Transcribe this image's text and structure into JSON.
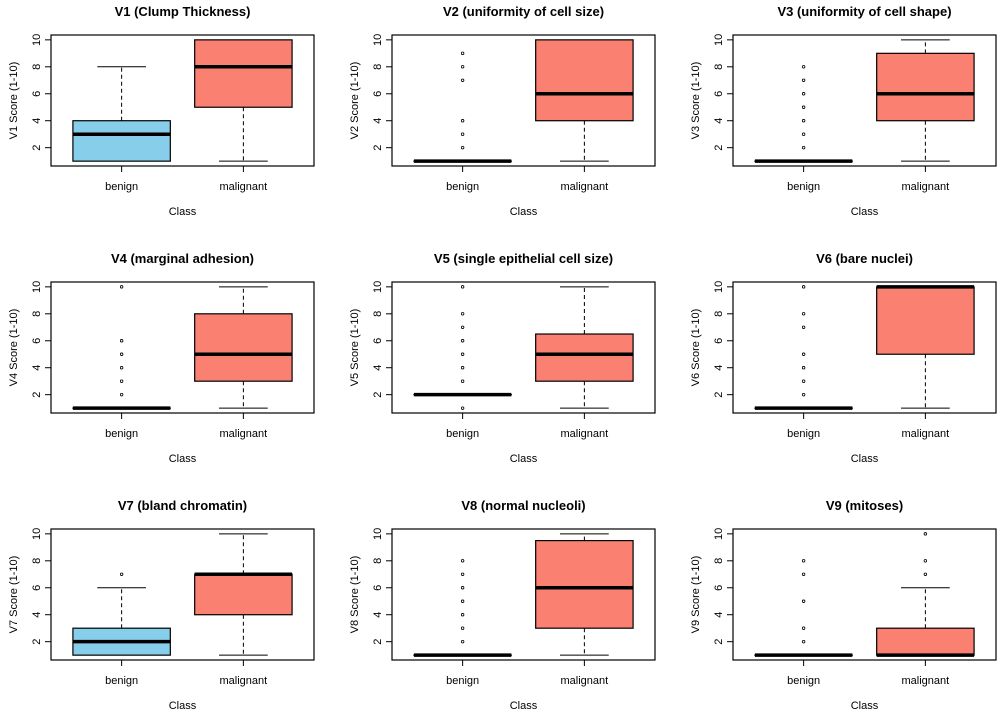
{
  "colors": {
    "benign": "#87CEEB",
    "malignant": "#FA8072"
  },
  "chart_data": [
    {
      "type": "box",
      "title": "V1 (Clump Thickness)",
      "xlabel": "Class",
      "ylabel": "V1 Score (1-10)",
      "ylim": [
        1,
        10
      ],
      "yticks": [
        2,
        4,
        6,
        8,
        10
      ],
      "categories": [
        "benign",
        "malignant"
      ],
      "boxes": [
        {
          "category": "benign",
          "whisker_low": 1,
          "q1": 1,
          "median": 3,
          "q3": 4,
          "whisker_high": 8,
          "outliers": []
        },
        {
          "category": "malignant",
          "whisker_low": 1,
          "q1": 5,
          "median": 8,
          "q3": 10,
          "whisker_high": 10,
          "outliers": []
        }
      ]
    },
    {
      "type": "box",
      "title": "V2 (uniformity of cell size)",
      "xlabel": "Class",
      "ylabel": "V2 Score (1-10)",
      "ylim": [
        1,
        10
      ],
      "yticks": [
        2,
        4,
        6,
        8,
        10
      ],
      "categories": [
        "benign",
        "malignant"
      ],
      "boxes": [
        {
          "category": "benign",
          "whisker_low": 1,
          "q1": 1,
          "median": 1,
          "q3": 1,
          "whisker_high": 1,
          "outliers": [
            2,
            3,
            4,
            7,
            8,
            9
          ]
        },
        {
          "category": "malignant",
          "whisker_low": 1,
          "q1": 4,
          "median": 6,
          "q3": 10,
          "whisker_high": 10,
          "outliers": []
        }
      ]
    },
    {
      "type": "box",
      "title": "V3 (uniformity of cell shape)",
      "xlabel": "Class",
      "ylabel": "V3 Score (1-10)",
      "ylim": [
        1,
        10
      ],
      "yticks": [
        2,
        4,
        6,
        8,
        10
      ],
      "categories": [
        "benign",
        "malignant"
      ],
      "boxes": [
        {
          "category": "benign",
          "whisker_low": 1,
          "q1": 1,
          "median": 1,
          "q3": 1,
          "whisker_high": 1,
          "outliers": [
            2,
            3,
            4,
            5,
            6,
            7,
            8
          ]
        },
        {
          "category": "malignant",
          "whisker_low": 1,
          "q1": 4,
          "median": 6,
          "q3": 9,
          "whisker_high": 10,
          "outliers": []
        }
      ]
    },
    {
      "type": "box",
      "title": "V4 (marginal adhesion)",
      "xlabel": "Class",
      "ylabel": "V4 Score (1-10)",
      "ylim": [
        1,
        10
      ],
      "yticks": [
        2,
        4,
        6,
        8,
        10
      ],
      "categories": [
        "benign",
        "malignant"
      ],
      "boxes": [
        {
          "category": "benign",
          "whisker_low": 1,
          "q1": 1,
          "median": 1,
          "q3": 1,
          "whisker_high": 1,
          "outliers": [
            2,
            3,
            4,
            5,
            6,
            10
          ]
        },
        {
          "category": "malignant",
          "whisker_low": 1,
          "q1": 3,
          "median": 5,
          "q3": 8,
          "whisker_high": 10,
          "outliers": []
        }
      ]
    },
    {
      "type": "box",
      "title": "V5 (single epithelial cell size)",
      "xlabel": "Class",
      "ylabel": "V5 Score (1-10)",
      "ylim": [
        1,
        10
      ],
      "yticks": [
        2,
        4,
        6,
        8,
        10
      ],
      "categories": [
        "benign",
        "malignant"
      ],
      "boxes": [
        {
          "category": "benign",
          "whisker_low": 2,
          "q1": 2,
          "median": 2,
          "q3": 2,
          "whisker_high": 2,
          "outliers": [
            1,
            3,
            4,
            5,
            6,
            7,
            8,
            10
          ]
        },
        {
          "category": "malignant",
          "whisker_low": 1,
          "q1": 3,
          "median": 5,
          "q3": 6.5,
          "whisker_high": 10,
          "outliers": []
        }
      ]
    },
    {
      "type": "box",
      "title": "V6 (bare nuclei)",
      "xlabel": "Class",
      "ylabel": "V6 Score (1-10)",
      "ylim": [
        1,
        10
      ],
      "yticks": [
        2,
        4,
        6,
        8,
        10
      ],
      "categories": [
        "benign",
        "malignant"
      ],
      "boxes": [
        {
          "category": "benign",
          "whisker_low": 1,
          "q1": 1,
          "median": 1,
          "q3": 1,
          "whisker_high": 1,
          "outliers": [
            2,
            3,
            4,
            5,
            7,
            8,
            10
          ]
        },
        {
          "category": "malignant",
          "whisker_low": 1,
          "q1": 5,
          "median": 10,
          "q3": 10,
          "whisker_high": 10,
          "outliers": []
        }
      ]
    },
    {
      "type": "box",
      "title": "V7 (bland chromatin)",
      "xlabel": "Class",
      "ylabel": "V7 Score (1-10)",
      "ylim": [
        1,
        10
      ],
      "yticks": [
        2,
        4,
        6,
        8,
        10
      ],
      "categories": [
        "benign",
        "malignant"
      ],
      "boxes": [
        {
          "category": "benign",
          "whisker_low": 1,
          "q1": 1,
          "median": 2,
          "q3": 3,
          "whisker_high": 6,
          "outliers": [
            7
          ]
        },
        {
          "category": "malignant",
          "whisker_low": 1,
          "q1": 4,
          "median": 7,
          "q3": 7,
          "whisker_high": 10,
          "outliers": []
        }
      ]
    },
    {
      "type": "box",
      "title": "V8 (normal nucleoli)",
      "xlabel": "Class",
      "ylabel": "V8 Score (1-10)",
      "ylim": [
        1,
        10
      ],
      "yticks": [
        2,
        4,
        6,
        8,
        10
      ],
      "categories": [
        "benign",
        "malignant"
      ],
      "boxes": [
        {
          "category": "benign",
          "whisker_low": 1,
          "q1": 1,
          "median": 1,
          "q3": 1,
          "whisker_high": 1,
          "outliers": [
            2,
            3,
            4,
            5,
            6,
            7,
            8
          ]
        },
        {
          "category": "malignant",
          "whisker_low": 1,
          "q1": 3,
          "median": 6,
          "q3": 9.5,
          "whisker_high": 10,
          "outliers": []
        }
      ]
    },
    {
      "type": "box",
      "title": "V9 (mitoses)",
      "xlabel": "Class",
      "ylabel": "V9 Score (1-10)",
      "ylim": [
        1,
        10
      ],
      "yticks": [
        2,
        4,
        6,
        8,
        10
      ],
      "categories": [
        "benign",
        "malignant"
      ],
      "boxes": [
        {
          "category": "benign",
          "whisker_low": 1,
          "q1": 1,
          "median": 1,
          "q3": 1,
          "whisker_high": 1,
          "outliers": [
            2,
            3,
            5,
            7,
            8
          ]
        },
        {
          "category": "malignant",
          "whisker_low": 1,
          "q1": 1,
          "median": 1,
          "q3": 3,
          "whisker_high": 6,
          "outliers": [
            7,
            8,
            10
          ]
        }
      ]
    }
  ]
}
